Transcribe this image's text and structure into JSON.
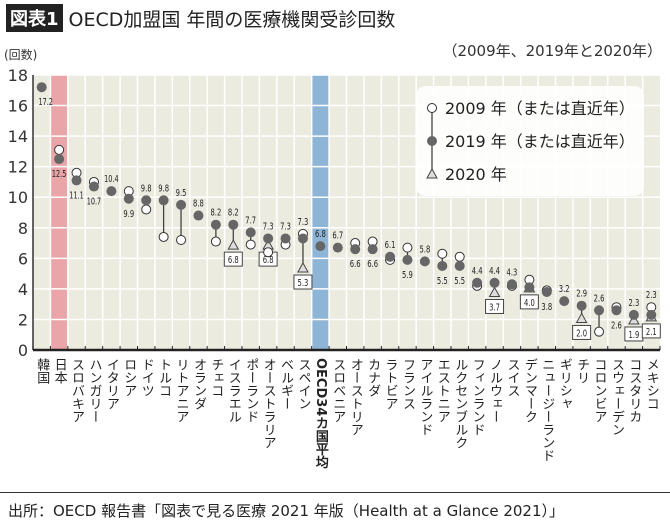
{
  "header": {
    "badge": "図表1",
    "title": "OECD加盟国 年間の医療機関受診回数",
    "subtitle": "（2009年、2019年と2020年）",
    "unit": "(回数)"
  },
  "footer": {
    "source": "出所：OECD 報告書「図表で見る医療 2021 年版（Health at a Glance 2021）」"
  },
  "colors": {
    "background": "#ecebe0",
    "grid": "#ffffff",
    "japan_highlight": "#e9a5a8",
    "oecd_highlight": "#8fb5d6",
    "marker_2019": "#666666",
    "marker_2009": "#ffffff",
    "line": "#444444"
  },
  "chart_data": {
    "type": "dot-range",
    "ylabel": "(回数)",
    "ylim": [
      0,
      18
    ],
    "yticks": [
      0,
      2,
      4,
      6,
      8,
      10,
      12,
      14,
      16,
      18
    ],
    "grid": true,
    "legend_placement": "top-right",
    "legend": [
      {
        "marker": "open-circle",
        "label": "2009 年（または直近年）"
      },
      {
        "marker": "filled-circle",
        "label": "2019 年（または直近年）"
      },
      {
        "marker": "triangle",
        "label": "2020 年"
      }
    ],
    "highlight": {
      "japan": "日本",
      "oecd": "OECD34カ国平均"
    },
    "categories": [
      "韓国",
      "日本",
      "スロバキア",
      "ハンガリー",
      "イタリア",
      "ロシア",
      "ドイツ",
      "トルコ",
      "リトアニア",
      "オランダ",
      "チェコ",
      "イスラエル",
      "ポーランド",
      "オーストラリア",
      "ベルギー",
      "スペイン",
      "OECD34カ国平均",
      "スロベニア",
      "オーストリア",
      "カナダ",
      "ラトビア",
      "フランス",
      "アイルランド",
      "エストニア",
      "ルクセンブルク",
      "フィンランド",
      "ノルウェー",
      "スイス",
      "デンマーク",
      "ニュージーランド",
      "ギリシャ",
      "チリ",
      "コロンビア",
      "スウェーデン",
      "コスタリカ",
      "メキシコ"
    ],
    "series": [
      {
        "name": "2019 年（または直近年）",
        "values": [
          17.2,
          12.5,
          11.1,
          10.7,
          10.4,
          9.9,
          9.8,
          9.8,
          9.5,
          8.8,
          8.2,
          8.2,
          7.7,
          7.3,
          7.3,
          7.3,
          6.8,
          6.7,
          6.6,
          6.6,
          6.1,
          5.9,
          5.8,
          5.5,
          5.5,
          4.4,
          4.4,
          4.3,
          4.1,
          3.8,
          3.2,
          2.9,
          2.6,
          2.6,
          2.3,
          2.3
        ],
        "labels": [
          "17.2",
          "12.5",
          "11.1",
          "10.7",
          "10.4",
          "9.9",
          "9.8",
          "9.8",
          "9.5",
          "8.8",
          "8.2",
          "8.2",
          "7.7",
          "7.3",
          "7.3",
          "7.3",
          "6.8",
          "6.7",
          "6.6",
          "6.6",
          "6.1",
          "5.9",
          "5.8",
          "5.5",
          "5.5",
          "4.4",
          "4.4",
          "4.3",
          "",
          "3.8",
          "3.2",
          "2.9",
          "2.6",
          "2.6",
          "2.3",
          "2.3"
        ]
      },
      {
        "name": "2009 年（または直近年）",
        "values": [
          null,
          13.1,
          11.6,
          11.0,
          null,
          10.4,
          9.2,
          7.4,
          7.2,
          null,
          7.1,
          null,
          6.9,
          6.4,
          6.9,
          7.6,
          null,
          null,
          7.0,
          7.1,
          5.9,
          6.7,
          null,
          6.3,
          6.1,
          4.2,
          null,
          4.2,
          4.6,
          3.9,
          null,
          null,
          1.2,
          2.8,
          null,
          2.8
        ]
      },
      {
        "name": "2020 年",
        "values": [
          null,
          null,
          null,
          null,
          null,
          null,
          null,
          null,
          null,
          null,
          null,
          6.8,
          null,
          6.8,
          null,
          5.3,
          null,
          null,
          null,
          null,
          null,
          null,
          null,
          null,
          null,
          null,
          3.7,
          null,
          4.0,
          null,
          null,
          2.0,
          null,
          null,
          1.9,
          2.1
        ],
        "labels": [
          "",
          "",
          "",
          "",
          "",
          "",
          "",
          "",
          "",
          "",
          "",
          "6.8",
          "",
          "6.8",
          "",
          "5.3",
          "",
          "",
          "",
          "",
          "",
          "",
          "",
          "",
          "",
          "",
          "3.7",
          "",
          "4.0",
          "",
          "",
          "2.0",
          "",
          "",
          "1.9",
          "2.1"
        ]
      }
    ]
  }
}
